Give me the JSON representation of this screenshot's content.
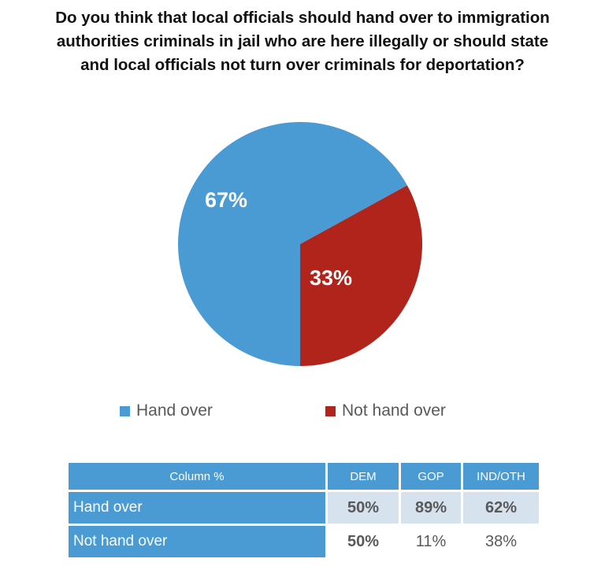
{
  "title": [
    "Do you think that local officials should hand over to immigration",
    "authorities criminals in jail who are here illegally or should state",
    "and local officials not turn over criminals for deportation?"
  ],
  "chart_data": {
    "type": "pie",
    "title": "Do you think that local officials should hand over to immigration authorities criminals in jail who are here illegally or should state and local officials not turn over criminals for deportation?",
    "categories": [
      "Hand over",
      "Not hand over"
    ],
    "values": [
      67,
      33
    ],
    "labels": [
      "67%",
      "33%"
    ],
    "colors": [
      "#4A9BD4",
      "#B0241C"
    ],
    "legend": "bottom"
  },
  "table": {
    "header": [
      "Column %",
      "DEM",
      "GOP",
      "IND/OTH"
    ],
    "rows": [
      {
        "label": "Hand over",
        "values": [
          "50%",
          "89%",
          "62%"
        ]
      },
      {
        "label": "Not hand over",
        "values": [
          "50%",
          "11%",
          "38%"
        ]
      }
    ]
  }
}
